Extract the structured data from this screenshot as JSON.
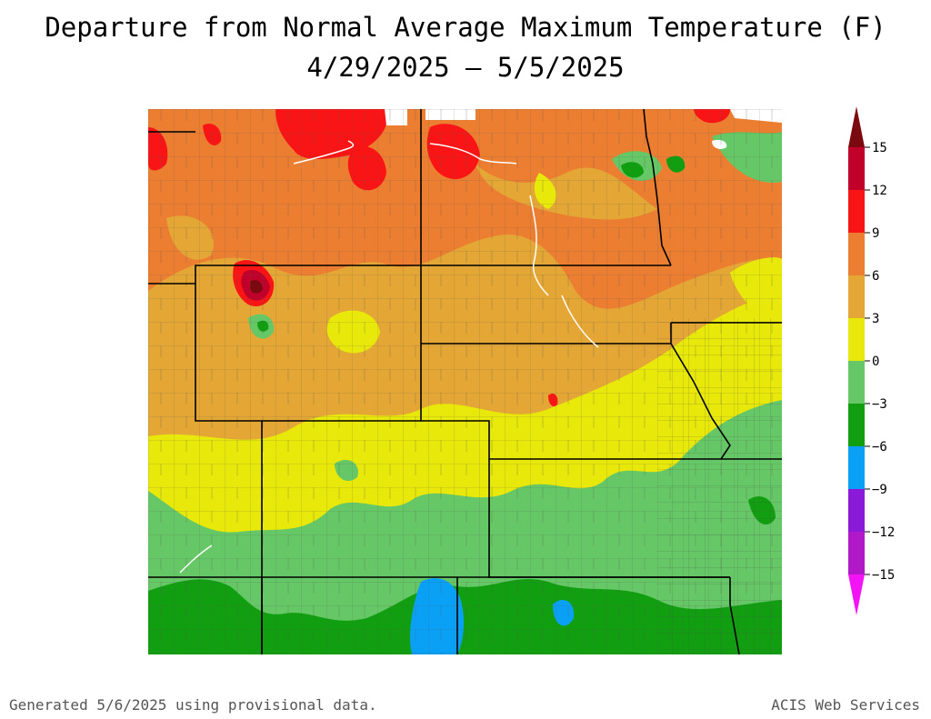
{
  "title": {
    "line1": "Departure from Normal Average Maximum Temperature (F)",
    "line2": "4/29/2025 – 5/5/2025"
  },
  "legend": {
    "bins": [
      {
        "from": 12,
        "to": 15,
        "color": "#c0002b"
      },
      {
        "from": 9,
        "to": 12,
        "color": "#f91515"
      },
      {
        "from": 6,
        "to": 9,
        "color": "#ec7e31"
      },
      {
        "from": 3,
        "to": 6,
        "color": "#e4a735"
      },
      {
        "from": 0,
        "to": 3,
        "color": "#e8e80a"
      },
      {
        "from": -3,
        "to": 0,
        "color": "#66c766"
      },
      {
        "from": -6,
        "to": -3,
        "color": "#119f11"
      },
      {
        "from": -9,
        "to": -6,
        "color": "#0aa0f5"
      },
      {
        "from": -12,
        "to": -9,
        "color": "#8a1ad8"
      },
      {
        "from": -15,
        "to": -12,
        "color": "#b118c8"
      }
    ],
    "above_color": "#7a0a10",
    "below_color": "#f413f4",
    "ticks": [
      "15",
      "12",
      "9",
      "6",
      "3",
      "0",
      "−3",
      "−6",
      "−9",
      "−12",
      "−15"
    ]
  },
  "footer": {
    "left": "Generated 5/6/2025 using provisional data.",
    "right": "ACIS Web Services"
  }
}
